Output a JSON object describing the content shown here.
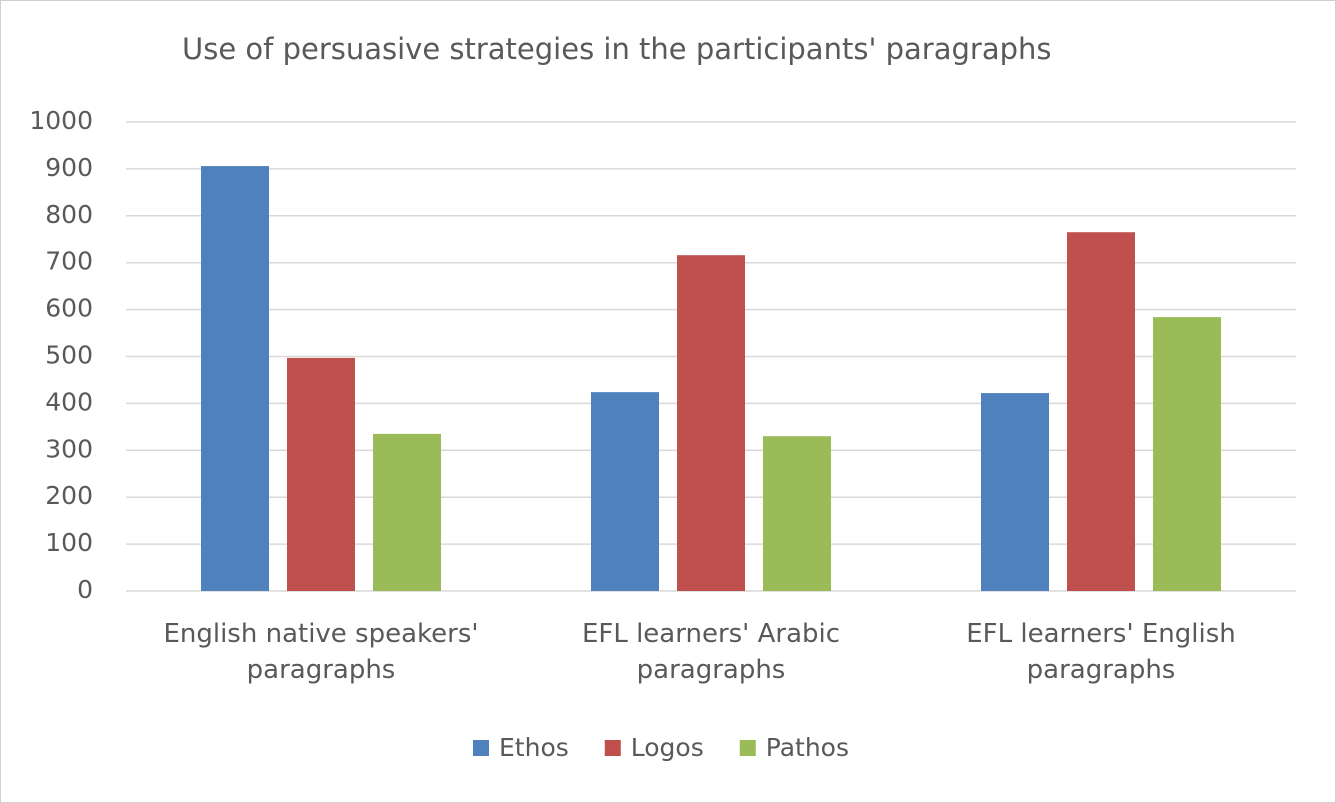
{
  "chart_data": {
    "type": "bar",
    "title": "Use of persuasive strategies in the participants' paragraphs",
    "categories": [
      "English native speakers' paragraphs",
      "EFL learners' Arabic paragraphs",
      "EFL learners' English paragraphs"
    ],
    "series": [
      {
        "name": "Ethos",
        "color": "#4f81bd",
        "values": [
          906,
          424,
          422
        ]
      },
      {
        "name": "Logos",
        "color": "#c0504d",
        "values": [
          497,
          716,
          765
        ]
      },
      {
        "name": "Pathos",
        "color": "#9bbb59",
        "values": [
          335,
          330,
          584
        ]
      }
    ],
    "ylim": [
      0,
      1000
    ],
    "yticks": [
      0,
      100,
      200,
      300,
      400,
      500,
      600,
      700,
      800,
      900,
      1000
    ],
    "grid": true,
    "legend": "bottom"
  }
}
